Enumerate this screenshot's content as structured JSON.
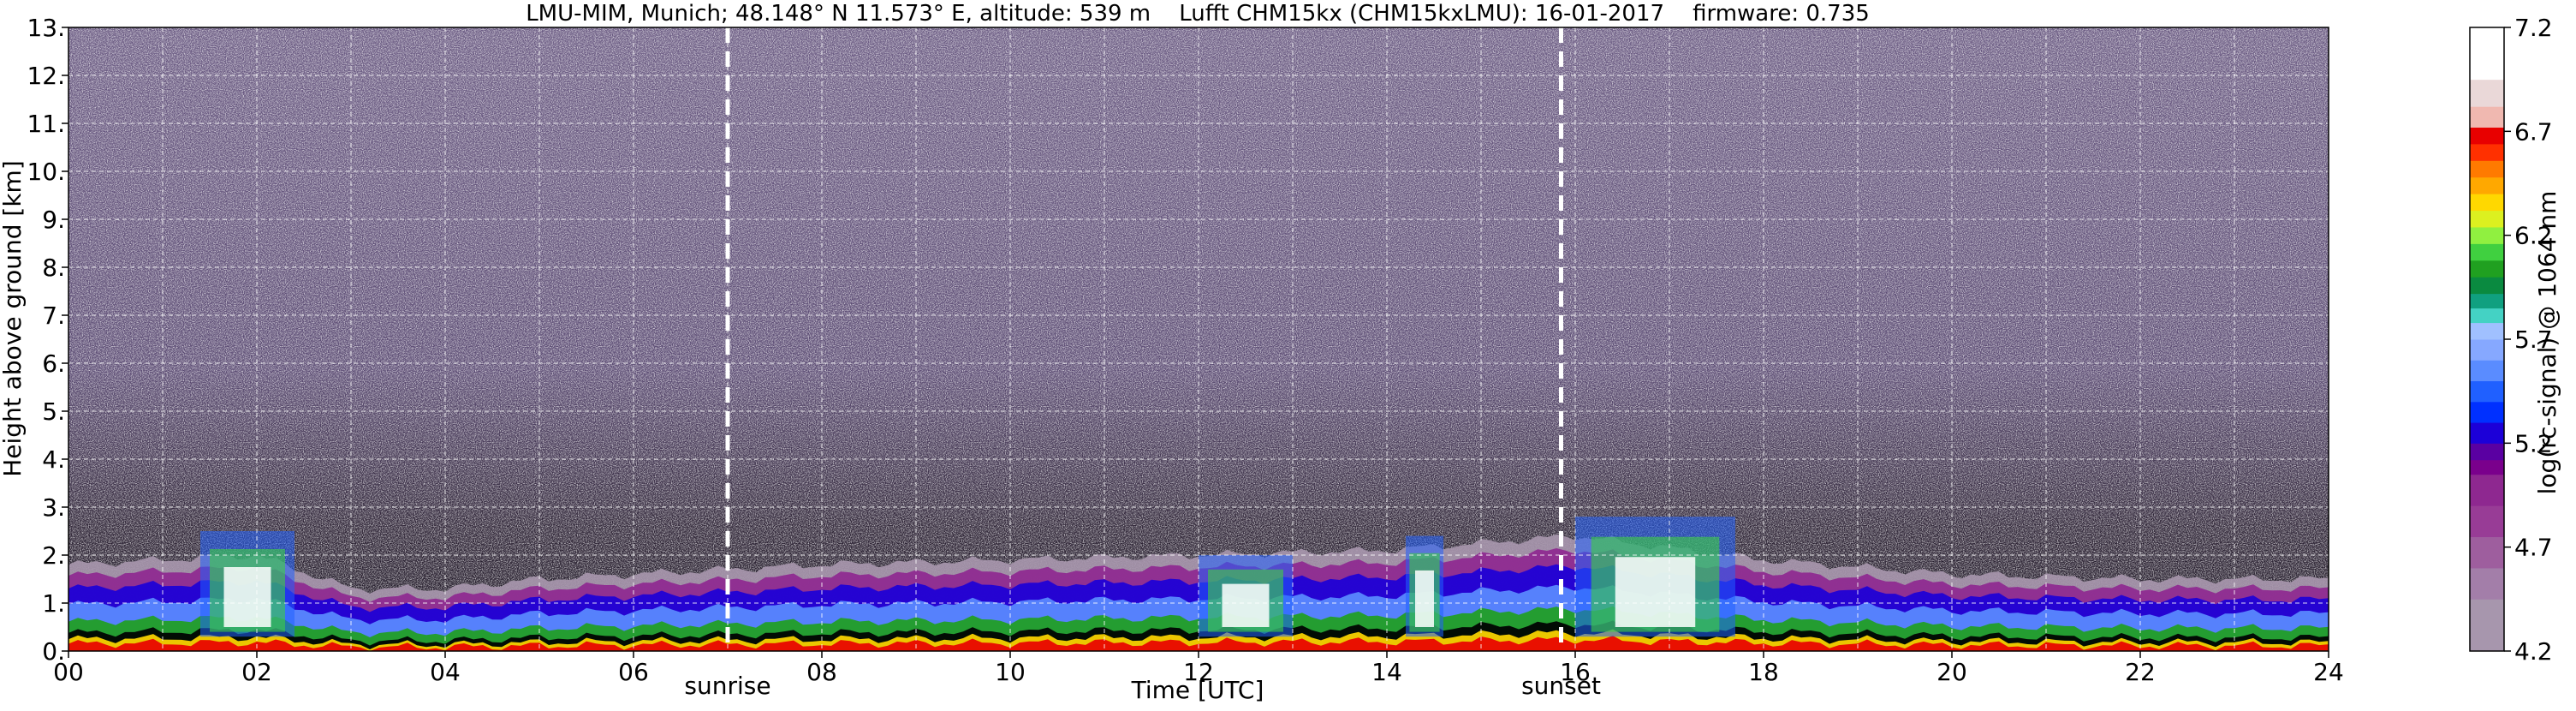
{
  "chart_data": {
    "type": "heatmap",
    "title": "LMU-MIM, Munich; 48.148° N 11.573° E, altitude: 539 m    Lufft CHM15kx (CHM15kxLMU): 16-01-2017    firmware: 0.735",
    "xlabel": "Time [UTC]",
    "ylabel": "Height above ground [km]",
    "xlim": [
      0,
      24
    ],
    "ylim": [
      0,
      13
    ],
    "x_ticks": [
      "00",
      "02",
      "04",
      "06",
      "08",
      "10",
      "12",
      "14",
      "16",
      "18",
      "20",
      "22",
      "24"
    ],
    "y_ticks": [
      "0.",
      "1.",
      "2.",
      "3.",
      "4.",
      "5.",
      "6.",
      "7.",
      "8.",
      "9.",
      "10.",
      "11.",
      "12.",
      "13."
    ],
    "grid": true,
    "events": [
      {
        "label": "sunrise",
        "time": 7.0
      },
      {
        "label": "sunset",
        "time": 15.85
      }
    ],
    "colorbar": {
      "label": "log(rc-signal) @ 1064 nm",
      "range": [
        4.2,
        7.2
      ],
      "ticks": [
        "4.2",
        "4.7",
        "5.2",
        "5.7",
        "6.2",
        "6.7",
        "7.2"
      ],
      "levels": [
        {
          "v": 4.2,
          "c": "#a796ad"
        },
        {
          "v": 4.45,
          "c": "#a37ea9"
        },
        {
          "v": 4.6,
          "c": "#9e5e9e"
        },
        {
          "v": 4.75,
          "c": "#983c96"
        },
        {
          "v": 4.9,
          "c": "#8e2890"
        },
        {
          "v": 5.05,
          "c": "#7a008c"
        },
        {
          "v": 5.12,
          "c": "#5a00a2"
        },
        {
          "v": 5.2,
          "c": "#1c00d8"
        },
        {
          "v": 5.3,
          "c": "#0030ff"
        },
        {
          "v": 5.4,
          "c": "#2060ff"
        },
        {
          "v": 5.5,
          "c": "#5a8cff"
        },
        {
          "v": 5.6,
          "c": "#86a8ff"
        },
        {
          "v": 5.7,
          "c": "#a0c0ff"
        },
        {
          "v": 5.78,
          "c": "#44d2c4"
        },
        {
          "v": 5.85,
          "c": "#10a080"
        },
        {
          "v": 5.92,
          "c": "#0a8a40"
        },
        {
          "v": 6.0,
          "c": "#20a020"
        },
        {
          "v": 6.08,
          "c": "#40d040"
        },
        {
          "v": 6.16,
          "c": "#90f040"
        },
        {
          "v": 6.24,
          "c": "#dcf020"
        },
        {
          "v": 6.32,
          "c": "#ffd800"
        },
        {
          "v": 6.4,
          "c": "#ffa800"
        },
        {
          "v": 6.48,
          "c": "#ff7a00"
        },
        {
          "v": 6.56,
          "c": "#ff3000"
        },
        {
          "v": 6.64,
          "c": "#e80000"
        },
        {
          "v": 6.72,
          "c": "#f0b8b0"
        },
        {
          "v": 6.82,
          "c": "#ead8d8"
        },
        {
          "v": 6.95,
          "c": "#ffffff"
        }
      ]
    },
    "layers": {
      "aerosol_top_km": [
        {
          "t": 0,
          "h": 1.8
        },
        {
          "t": 1,
          "h": 1.9
        },
        {
          "t": 2,
          "h": 2.0
        },
        {
          "t": 3,
          "h": 1.3
        },
        {
          "t": 4,
          "h": 1.3
        },
        {
          "t": 5,
          "h": 1.5
        },
        {
          "t": 6,
          "h": 1.6
        },
        {
          "t": 7,
          "h": 1.7
        },
        {
          "t": 8,
          "h": 1.8
        },
        {
          "t": 10,
          "h": 1.9
        },
        {
          "t": 12,
          "h": 2.0
        },
        {
          "t": 14,
          "h": 2.1
        },
        {
          "t": 16,
          "h": 2.4
        },
        {
          "t": 18,
          "h": 1.9
        },
        {
          "t": 20,
          "h": 1.6
        },
        {
          "t": 22,
          "h": 1.5
        },
        {
          "t": 24,
          "h": 1.5
        }
      ],
      "cloud_tops_km": [
        {
          "t0": 1.4,
          "t1": 2.4,
          "h": 2.5
        },
        {
          "t0": 12.0,
          "t1": 13.0,
          "h": 2.0
        },
        {
          "t0": 14.2,
          "t1": 14.6,
          "h": 2.4
        },
        {
          "t0": 16.0,
          "t1": 17.7,
          "h": 2.8
        }
      ]
    }
  }
}
